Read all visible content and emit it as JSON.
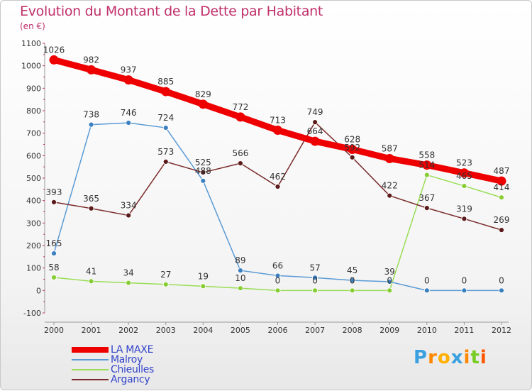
{
  "chart_data": {
    "type": "line",
    "title": "Evolution du Montant de la Dette par Habitant",
    "subtitle": "(en €)",
    "xlabel": "",
    "ylabel": "",
    "x": [
      "2000",
      "2001",
      "2002",
      "2003",
      "2004",
      "2005",
      "2006",
      "2007",
      "2008",
      "2009",
      "2010",
      "2011",
      "2012"
    ],
    "ylim": [
      -100,
      1100
    ],
    "yticks": [
      -100,
      0,
      100,
      200,
      300,
      400,
      500,
      600,
      700,
      800,
      900,
      1000,
      1100
    ],
    "grid": false,
    "legend_position": "bottom-left",
    "series": [
      {
        "name": "LA MAXE",
        "color": "#ee0000",
        "values": [
          1026,
          982,
          937,
          885,
          829,
          772,
          713,
          664,
          628,
          587,
          558,
          523,
          487
        ]
      },
      {
        "name": "Malroy",
        "color": "#5b9bd5",
        "values": [
          165,
          738,
          746,
          724,
          488,
          89,
          66,
          57,
          45,
          39,
          0,
          0,
          0
        ]
      },
      {
        "name": "Chieulles",
        "color": "#99dd55",
        "values": [
          58,
          41,
          34,
          27,
          19,
          10,
          0,
          0,
          0,
          0,
          514,
          465,
          414
        ]
      },
      {
        "name": "Argancy",
        "color": "#7a2a2a",
        "values": [
          393,
          365,
          334,
          573,
          525,
          566,
          462,
          749,
          592,
          422,
          367,
          319,
          269
        ]
      }
    ],
    "point_labels": [
      [
        "1026",
        "982",
        "937",
        "885",
        "829",
        "772",
        "713",
        "664",
        "628",
        "587",
        "558",
        "523",
        "487"
      ],
      [
        "165",
        "738",
        "746",
        "724",
        "488",
        "89",
        "66",
        "57",
        "45",
        "39",
        "0",
        "0",
        "0"
      ],
      [
        "58",
        "41",
        "34",
        "27",
        "19",
        "10",
        "0",
        "0",
        "0",
        "0",
        "514",
        "465",
        "414"
      ],
      [
        "393",
        "365",
        "334",
        "573",
        "525",
        "566",
        "462",
        "749",
        "592",
        "422",
        "367",
        "319",
        "269"
      ]
    ]
  },
  "logo": {
    "text": "Proxiti",
    "colors": [
      "#3aa0e0",
      "#ff8800",
      "#ffb000",
      "#3aa0e0",
      "#ff8800",
      "#77cc22",
      "#ff5500"
    ]
  }
}
